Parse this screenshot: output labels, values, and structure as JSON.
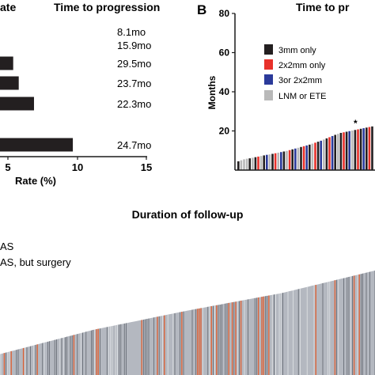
{
  "panel_a": {
    "header_partial": "ate",
    "time_header": "Time to progression",
    "xlabel": "Rate (%)",
    "x_ticks": [
      "5",
      "10",
      "15"
    ],
    "times": [
      "8.1mo",
      "15.9mo",
      "29.5mo",
      "23.7mo",
      "22.3mo",
      "24.7mo"
    ]
  },
  "panel_b": {
    "letter": "B",
    "title_partial": "Time to pr",
    "ylabel": "Months",
    "y_ticks": [
      "80",
      "60",
      "40",
      "20"
    ],
    "legend": [
      "3mm only",
      "2x2mm only",
      "3or 2x2mm",
      "LNM or ETE"
    ],
    "asterisk": "*"
  },
  "panel_c": {
    "title": "Duration of follow-up",
    "legend_partial": [
      "AS",
      "AS, but surgery"
    ]
  },
  "colors": {
    "dark": "#231f20",
    "red": "#e8312b",
    "blue": "#2b3a9a",
    "gray": "#b9b9b9",
    "orange": "#e05a2b",
    "follow_gray": "#b4b8c0"
  },
  "chart_data": [
    {
      "type": "bar",
      "orientation": "horizontal",
      "xlabel": "Rate (%)",
      "xlim": [
        0,
        15
      ],
      "categories_partial": true,
      "values": [
        null,
        null,
        5.4,
        5.8,
        6.9,
        9.7
      ],
      "annotations": [
        "8.1mo",
        "15.9mo",
        "29.5mo",
        "23.7mo",
        "22.3mo",
        "24.7mo"
      ]
    },
    {
      "type": "bar",
      "ylabel": "Months",
      "ylim": [
        0,
        80
      ],
      "series": [
        {
          "name": "3mm only",
          "color": "#231f20"
        },
        {
          "name": "2x2mm only",
          "color": "#e8312b"
        },
        {
          "name": "3or 2x2mm",
          "color": "#2b3a9a"
        },
        {
          "name": "LNM or ETE",
          "color": "#b9b9b9"
        }
      ],
      "values": [
        4.5,
        5,
        5.5,
        5.8,
        6,
        6.3,
        6.6,
        6.9,
        7.2,
        7.5,
        7.8,
        8,
        8.3,
        8.6,
        8.9,
        9.2,
        9.5,
        9.8,
        10.2,
        10.6,
        11,
        11.4,
        11.8,
        12.2,
        12.6,
        13,
        13.5,
        14,
        14.5,
        15,
        15.6,
        16.2,
        16.8,
        17.4,
        18,
        18.5,
        19,
        19.3,
        19.6,
        19.9,
        20.2,
        20.5,
        20.8,
        21.1,
        21.4,
        21.7,
        22,
        22.3
      ],
      "bar_colors": [
        "d",
        "g",
        "g",
        "g",
        "d",
        "g",
        "d",
        "r",
        "g",
        "d",
        "b",
        "g",
        "d",
        "r",
        "g",
        "b",
        "d",
        "g",
        "r",
        "d",
        "b",
        "g",
        "d",
        "r",
        "b",
        "d",
        "g",
        "r",
        "d",
        "b",
        "g",
        "d",
        "r",
        "b",
        "d",
        "g",
        "d",
        "r",
        "d",
        "b",
        "g",
        "d",
        "r",
        "d",
        "b",
        "d",
        "r",
        "d"
      ]
    },
    {
      "type": "bar",
      "title": "Duration of follow-up",
      "series": [
        {
          "name": "AS",
          "color": "#b4b8c0"
        },
        {
          "name": "AS, but surgery",
          "color": "#e05a2b"
        }
      ],
      "profile": [
        [
          0,
          0.12
        ],
        [
          0.25,
          0.26
        ],
        [
          0.5,
          0.37
        ],
        [
          0.75,
          0.47
        ],
        [
          1,
          0.6
        ]
      ]
    }
  ]
}
